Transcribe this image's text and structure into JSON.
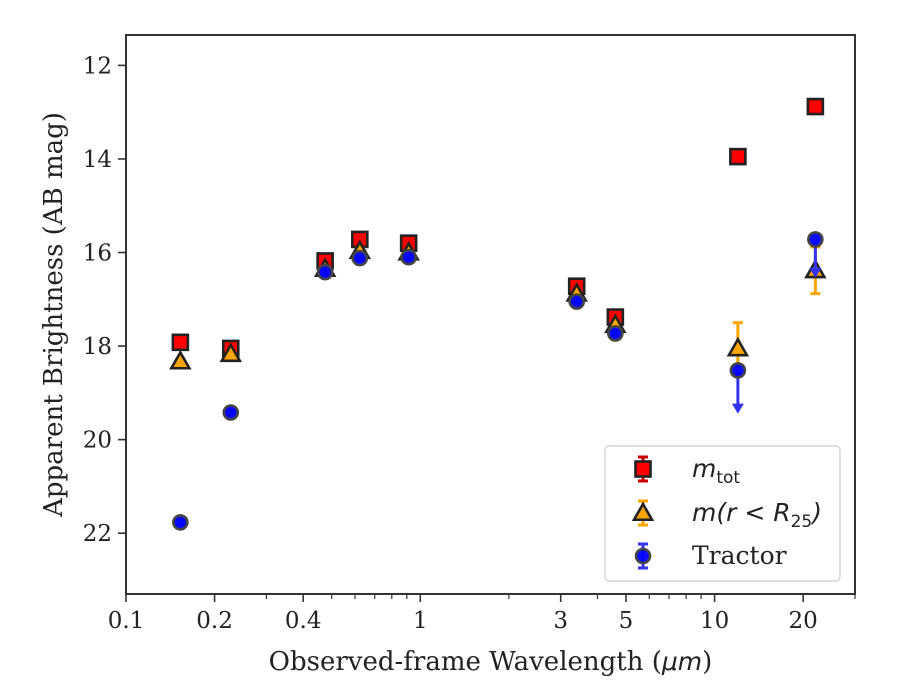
{
  "chart_data": {
    "type": "scatter",
    "xscale": "log",
    "yinverted": true,
    "xlim": [
      0.1,
      30
    ],
    "ylim": [
      11.35,
      23.3
    ],
    "xlabel_text": "Observed-frame Wavelength (",
    "xlabel_unit": "μm",
    "xlabel_end": ")",
    "ylabel": "Apparent Brightness (AB mag)",
    "xticks": [
      {
        "value": 0.1,
        "label": "0.1"
      },
      {
        "value": 0.2,
        "label": "0.2"
      },
      {
        "value": 0.4,
        "label": "0.4"
      },
      {
        "value": 1,
        "label": "1"
      },
      {
        "value": 3,
        "label": "3"
      },
      {
        "value": 5,
        "label": "5"
      },
      {
        "value": 10,
        "label": "10"
      },
      {
        "value": 20,
        "label": "20"
      }
    ],
    "xminor": [
      0.3,
      0.5,
      0.6,
      0.7,
      0.8,
      0.9,
      2,
      4,
      6,
      7,
      8,
      9,
      30
    ],
    "yticks": [
      {
        "value": 12,
        "label": "12"
      },
      {
        "value": 14,
        "label": "14"
      },
      {
        "value": 16,
        "label": "16"
      },
      {
        "value": 18,
        "label": "18"
      },
      {
        "value": 20,
        "label": "20"
      },
      {
        "value": 22,
        "label": "22"
      }
    ],
    "legend_position": "lower-right",
    "series": [
      {
        "legend_base": "m",
        "legend_sub": "tot",
        "marker": "square",
        "face": "#ff0000",
        "edge": "#222222",
        "errcolor": "#cc0000",
        "points": [
          {
            "x": 0.153,
            "y": 17.92,
            "err": 0.05
          },
          {
            "x": 0.227,
            "y": 18.05,
            "err": 0.05
          },
          {
            "x": 0.475,
            "y": 16.18,
            "err": 0.05
          },
          {
            "x": 0.623,
            "y": 15.72,
            "err": 0.05
          },
          {
            "x": 0.913,
            "y": 15.8,
            "err": 0.05
          },
          {
            "x": 3.4,
            "y": 16.72,
            "err": 0.05
          },
          {
            "x": 4.6,
            "y": 17.38,
            "err": 0.05
          },
          {
            "x": 12.0,
            "y": 13.95,
            "err": 0.05
          },
          {
            "x": 22.0,
            "y": 12.88,
            "err": 0.05
          }
        ]
      },
      {
        "legend_base": "m",
        "legend_rest": "(r < R",
        "legend_sub": "25",
        "legend_end": ")",
        "marker": "triangle",
        "face": "#ffa500",
        "edge": "#222222",
        "errcolor": "#ffa500",
        "points": [
          {
            "x": 0.153,
            "y": 18.33,
            "err": 0.05
          },
          {
            "x": 0.227,
            "y": 18.17,
            "err": 0.05
          },
          {
            "x": 0.475,
            "y": 16.35,
            "err": 0.05
          },
          {
            "x": 0.623,
            "y": 15.97,
            "err": 0.05
          },
          {
            "x": 0.913,
            "y": 16.0,
            "err": 0.05
          },
          {
            "x": 3.4,
            "y": 16.88,
            "err": 0.05
          },
          {
            "x": 4.6,
            "y": 17.55,
            "err": 0.05
          },
          {
            "x": 12.0,
            "y": 18.05,
            "err": 0.55
          },
          {
            "x": 22.0,
            "y": 16.38,
            "err": 0.5
          }
        ]
      },
      {
        "name": "Tractor",
        "marker": "circle",
        "face": "#0000ff",
        "edge": "#444444",
        "errcolor": "#3333ee",
        "points": [
          {
            "x": 0.153,
            "y": 21.77,
            "err": 0.05
          },
          {
            "x": 0.227,
            "y": 19.42,
            "err": 0.05
          },
          {
            "x": 0.475,
            "y": 16.42,
            "err": 0.05
          },
          {
            "x": 0.623,
            "y": 16.12,
            "err": 0.05
          },
          {
            "x": 0.913,
            "y": 16.1,
            "err": 0.05
          },
          {
            "x": 3.4,
            "y": 17.05,
            "err": 0.05
          },
          {
            "x": 4.6,
            "y": 17.73,
            "err": 0.05
          },
          {
            "x": 12.0,
            "y": 18.52,
            "err": 0.05,
            "limit": "upper",
            "limit_to": 19.4
          },
          {
            "x": 22.0,
            "y": 15.72,
            "err": 0.05,
            "limit": "upper",
            "limit_to": 16.5
          }
        ]
      }
    ]
  }
}
